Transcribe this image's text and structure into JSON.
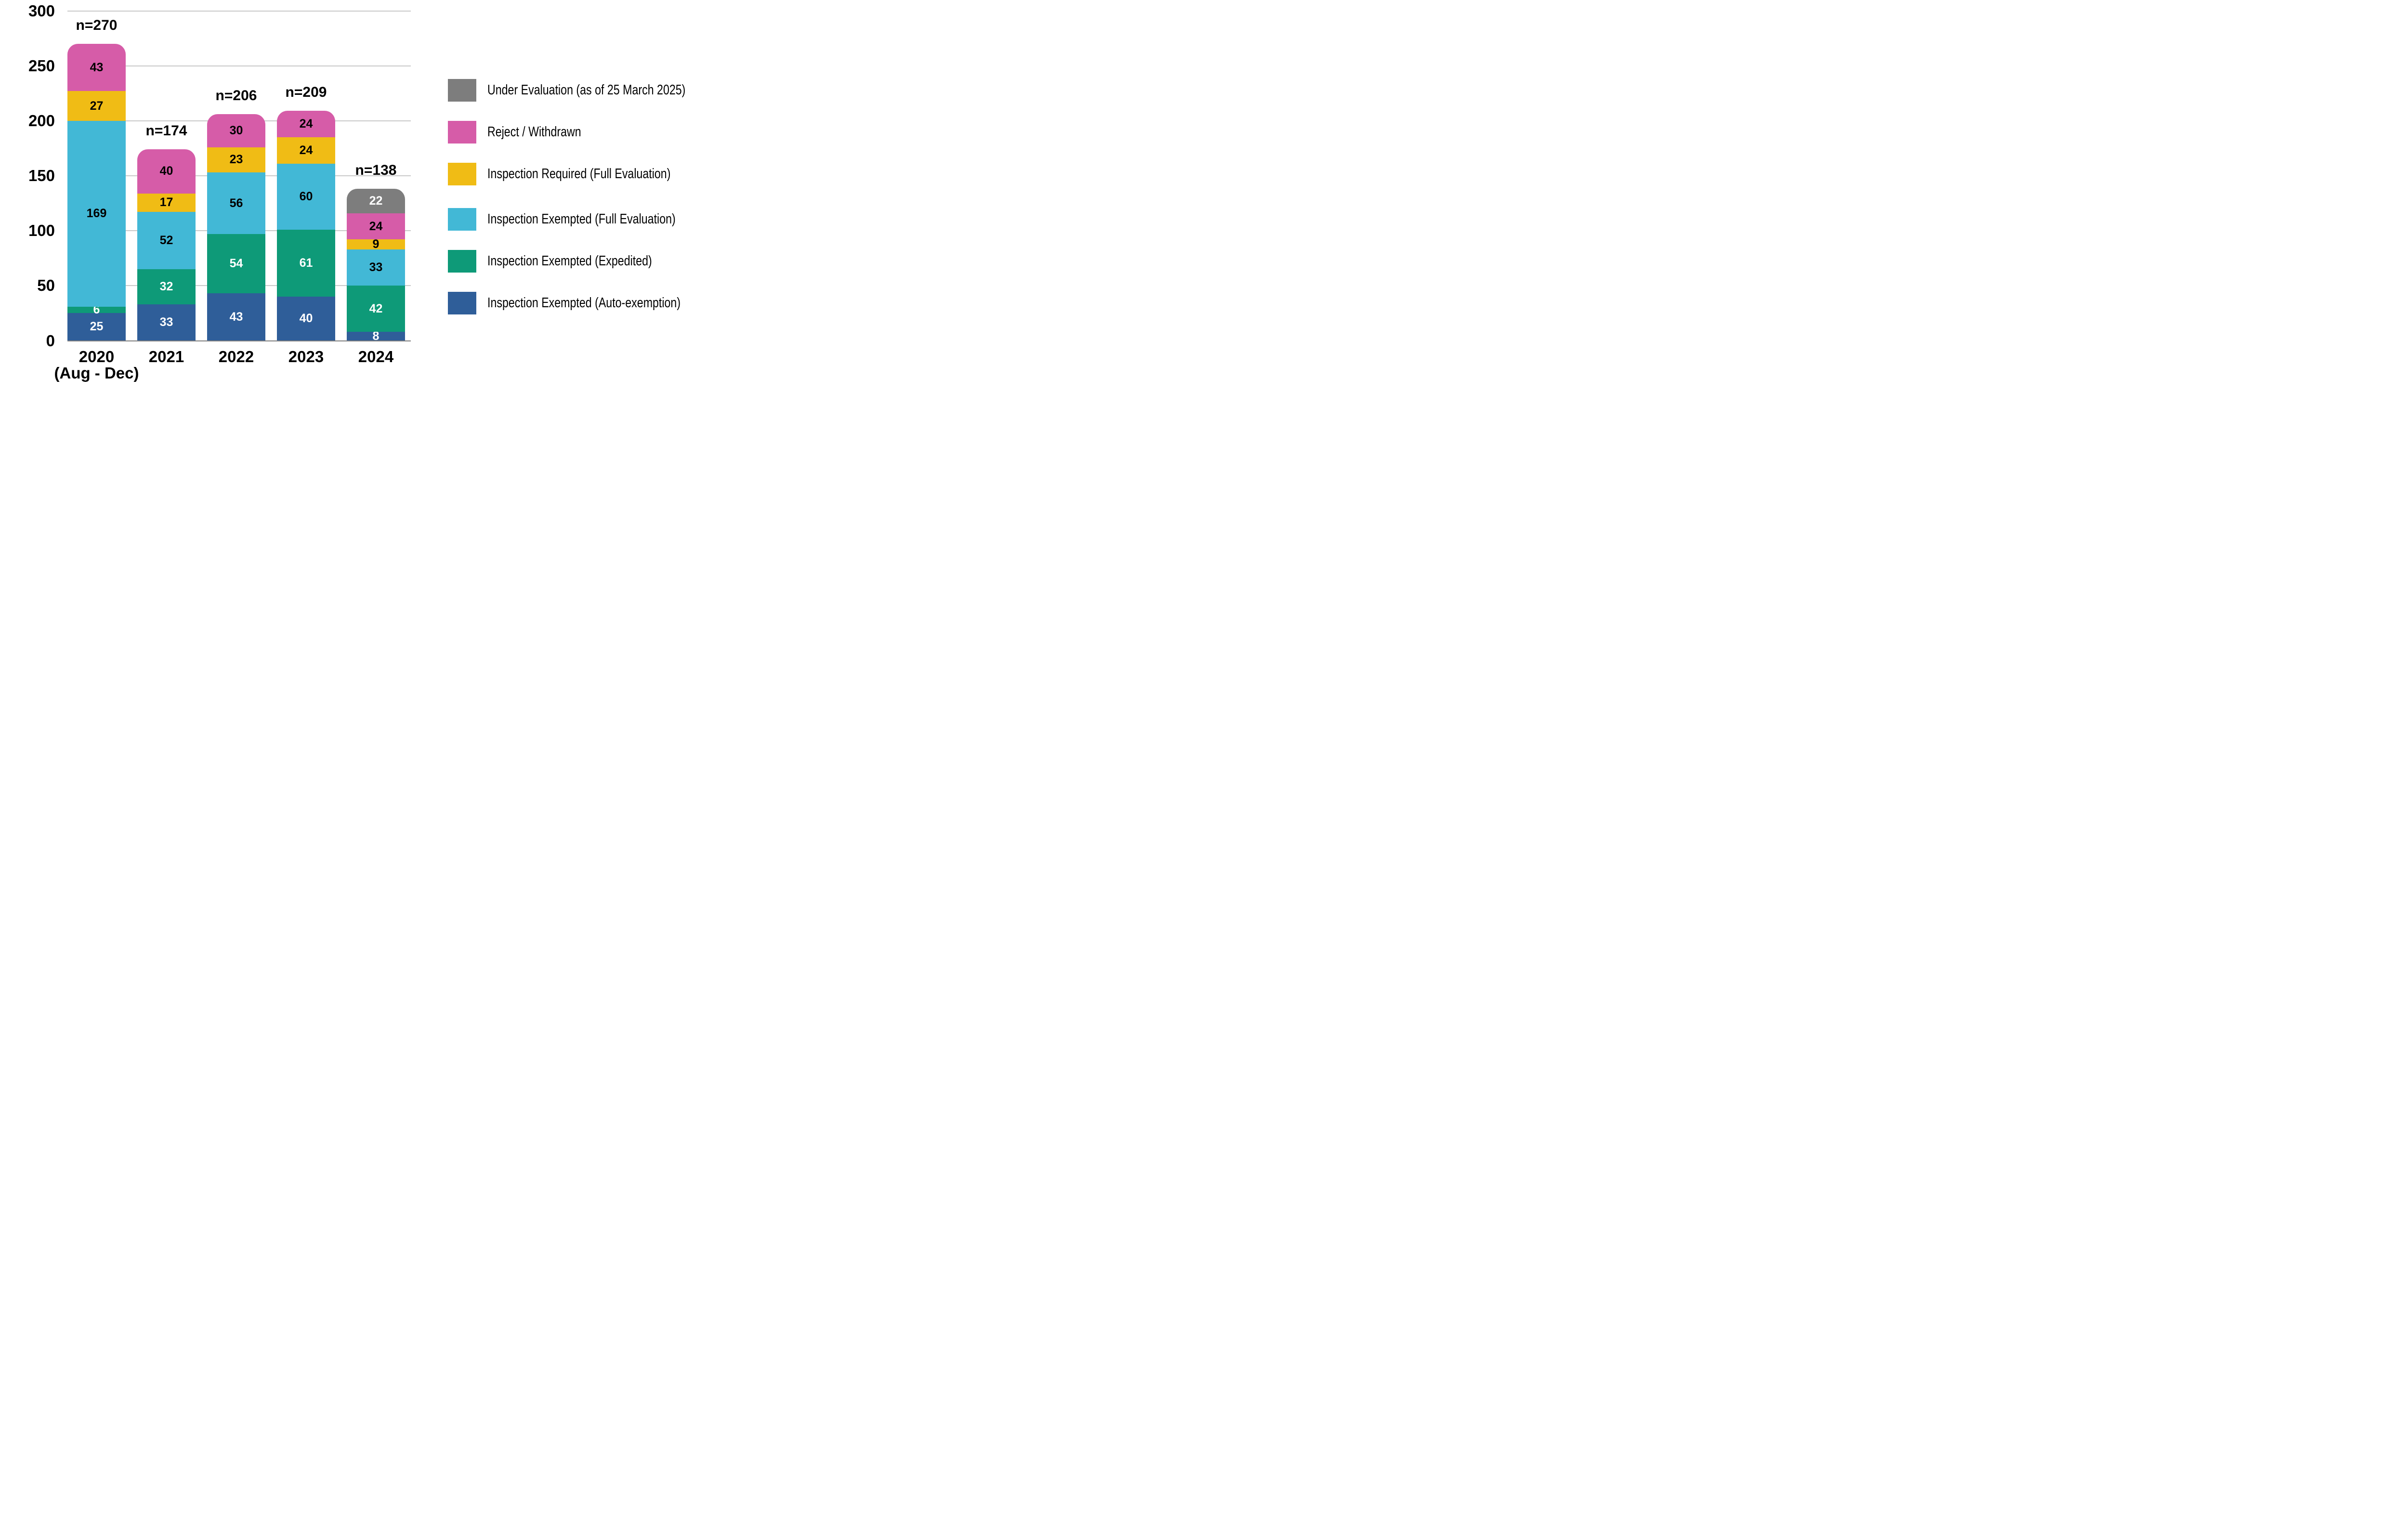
{
  "chart_data": {
    "type": "bar",
    "stacked": true,
    "title": "",
    "categories": [
      {
        "label": "2020",
        "sublabel": "(Aug - Dec)"
      },
      {
        "label": "2021"
      },
      {
        "label": "2022"
      },
      {
        "label": "2023"
      },
      {
        "label": "2024"
      }
    ],
    "totals_labels": [
      "n=270",
      "n=174",
      "n=206",
      "n=209",
      "n=138"
    ],
    "totals": [
      270,
      174,
      206,
      209,
      138
    ],
    "series": [
      {
        "name": "Inspection Exempted (Auto-exemption)",
        "color": "#2f5e99",
        "text_color": "#ffffff",
        "values": [
          25,
          33,
          43,
          40,
          8
        ]
      },
      {
        "name": "Inspection Exempted (Expedited)",
        "color": "#0e9a78",
        "text_color": "#ffffff",
        "values": [
          6,
          32,
          54,
          61,
          42
        ]
      },
      {
        "name": "Inspection Exempted (Full Evaluation)",
        "color": "#42b8d6",
        "text_color": "#000000",
        "values": [
          169,
          52,
          56,
          60,
          33
        ]
      },
      {
        "name": "Inspection Required (Full Evaluation)",
        "color": "#f0bc15",
        "text_color": "#000000",
        "values": [
          27,
          17,
          23,
          24,
          9
        ]
      },
      {
        "name": "Reject / Withdrawn",
        "color": "#d65ca8",
        "text_color": "#000000",
        "values": [
          43,
          40,
          30,
          24,
          24
        ]
      },
      {
        "name": "Under Evaluation (as of 25 March 2025)",
        "color": "#7d7d7d",
        "text_color": "#ffffff",
        "values": [
          0,
          0,
          0,
          0,
          22
        ]
      }
    ],
    "ylim": [
      0,
      300
    ],
    "yticks": [
      0,
      50,
      100,
      150,
      200,
      250,
      300
    ],
    "grid": true,
    "legend_position": "right"
  },
  "legend": {
    "items": [
      {
        "label": "Under Evaluation (as of 25 March 2025)",
        "color": "#7d7d7d"
      },
      {
        "label": "Reject / Withdrawn",
        "color": "#d65ca8"
      },
      {
        "label": "Inspection Required (Full Evaluation)",
        "color": "#f0bc15"
      },
      {
        "label": "Inspection Exempted (Full Evaluation)",
        "color": "#42b8d6"
      },
      {
        "label": "Inspection Exempted (Expedited)",
        "color": "#0e9a78"
      },
      {
        "label": "Inspection Exempted (Auto-exemption)",
        "color": "#2f5e99"
      }
    ]
  }
}
